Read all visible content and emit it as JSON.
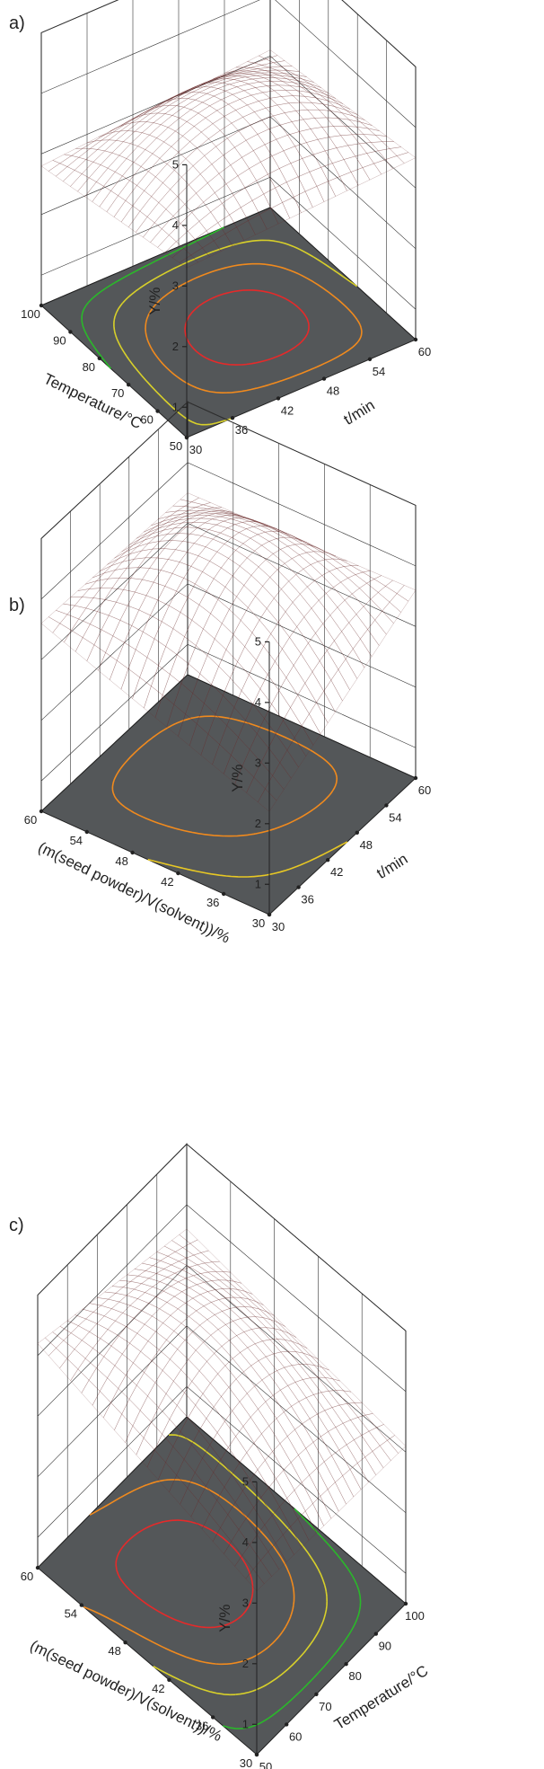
{
  "figure": {
    "panels": [
      "a)",
      "b)",
      "c)"
    ]
  },
  "chart_data": [
    {
      "type": "surface",
      "panel": "a)",
      "zlabel": "Y/%",
      "zticks": [
        "1",
        "2",
        "3",
        "4",
        "5"
      ],
      "zlim": [
        0.5,
        5
      ],
      "xlabel": "t/min",
      "xticks": [
        "30",
        "36",
        "42",
        "48",
        "54",
        "60"
      ],
      "xlim": [
        30,
        60
      ],
      "ylabel": "Temperature/°C",
      "yticks": [
        "50",
        "60",
        "70",
        "80",
        "90",
        "100"
      ],
      "ylim": [
        50,
        100
      ],
      "surface_corners": {
        "x_min_y_min": 3.3,
        "x_max_y_min": 3.5,
        "x_min_y_max": 2.8,
        "x_max_y_max": 3.1
      },
      "surface_peak": 4.1,
      "contour_colors": [
        "#e52a2a",
        "#f08a1e",
        "#d8d02a",
        "#2ab82a"
      ],
      "grid": true
    },
    {
      "type": "surface",
      "panel": "b)",
      "zlabel": "Y/%",
      "zticks": [
        "1",
        "2",
        "3",
        "4",
        "5"
      ],
      "zlim": [
        0.5,
        5
      ],
      "xlabel": "t/min",
      "xticks": [
        "30",
        "36",
        "42",
        "48",
        "54",
        "60"
      ],
      "xlim": [
        30,
        60
      ],
      "ylabel": "(m(seed powder)/V(solvent))/%",
      "yticks": [
        "30",
        "36",
        "42",
        "48",
        "54",
        "60"
      ],
      "ylim": [
        30,
        60
      ],
      "surface_corners": {
        "x_min_y_min": 2.2,
        "x_max_y_min": 3.6,
        "x_min_y_max": 3.6,
        "x_max_y_max": 3.5
      },
      "surface_peak": 4.4,
      "contour_colors": [
        "#f08a1e",
        "#e8c824"
      ],
      "grid": true
    },
    {
      "type": "surface",
      "panel": "c)",
      "zlabel": "Y/%",
      "zticks": [
        "1",
        "2",
        "3",
        "4",
        "5"
      ],
      "zlim": [
        0.5,
        5
      ],
      "xlabel": "Temperature/°C",
      "xticks": [
        "50",
        "60",
        "70",
        "80",
        "90",
        "100"
      ],
      "xlim": [
        50,
        100
      ],
      "ylabel": "(m(seed powder)/V(solvent))/%",
      "yticks": [
        "30",
        "36",
        "42",
        "48",
        "54",
        "60"
      ],
      "ylim": [
        30,
        60
      ],
      "surface_corners": {
        "x_min_y_min": 3.2,
        "x_max_y_min": 3.1,
        "x_min_y_max": 4.2,
        "x_max_y_max": 3.6
      },
      "surface_peak": 4.45,
      "contour_colors": [
        "#e52a2a",
        "#f08a1e",
        "#d8d02a",
        "#2ab82a"
      ],
      "grid": true
    }
  ]
}
